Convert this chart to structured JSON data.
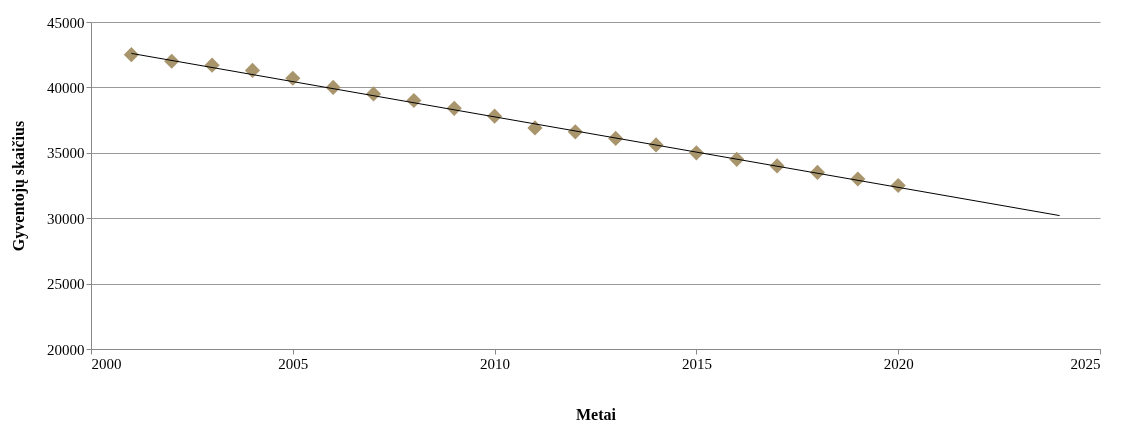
{
  "chart_data": {
    "type": "scatter",
    "xlabel": "Metai",
    "ylabel": "Gyventojų skaičius",
    "xlim": [
      2000,
      2025
    ],
    "xticks": [
      2000,
      2005,
      2010,
      2015,
      2020,
      2025
    ],
    "ylim": [
      20000,
      45000
    ],
    "yticks": [
      20000,
      25000,
      30000,
      35000,
      40000,
      45000
    ],
    "grid": "y",
    "series": [
      {
        "color": "#a8956c",
        "marker": "diamond",
        "x": [
          2001,
          2002,
          2003,
          2004,
          2005,
          2006,
          2007,
          2008,
          2009,
          2010,
          2011,
          2012,
          2013,
          2014,
          2015,
          2016,
          2017,
          2018,
          2019,
          2020
        ],
        "values": [
          42500,
          42000,
          41700,
          41300,
          40700,
          40000,
          39500,
          39000,
          38400,
          37800,
          36900,
          36600,
          36100,
          35600,
          35000,
          34500,
          34000,
          33500,
          33000,
          32500
        ]
      },
      {
        "type": "line",
        "color": "#000000",
        "line_style": "solid",
        "marker": "none",
        "x": [
          2001,
          2024
        ],
        "values": [
          42600,
          30200
        ]
      }
    ]
  }
}
